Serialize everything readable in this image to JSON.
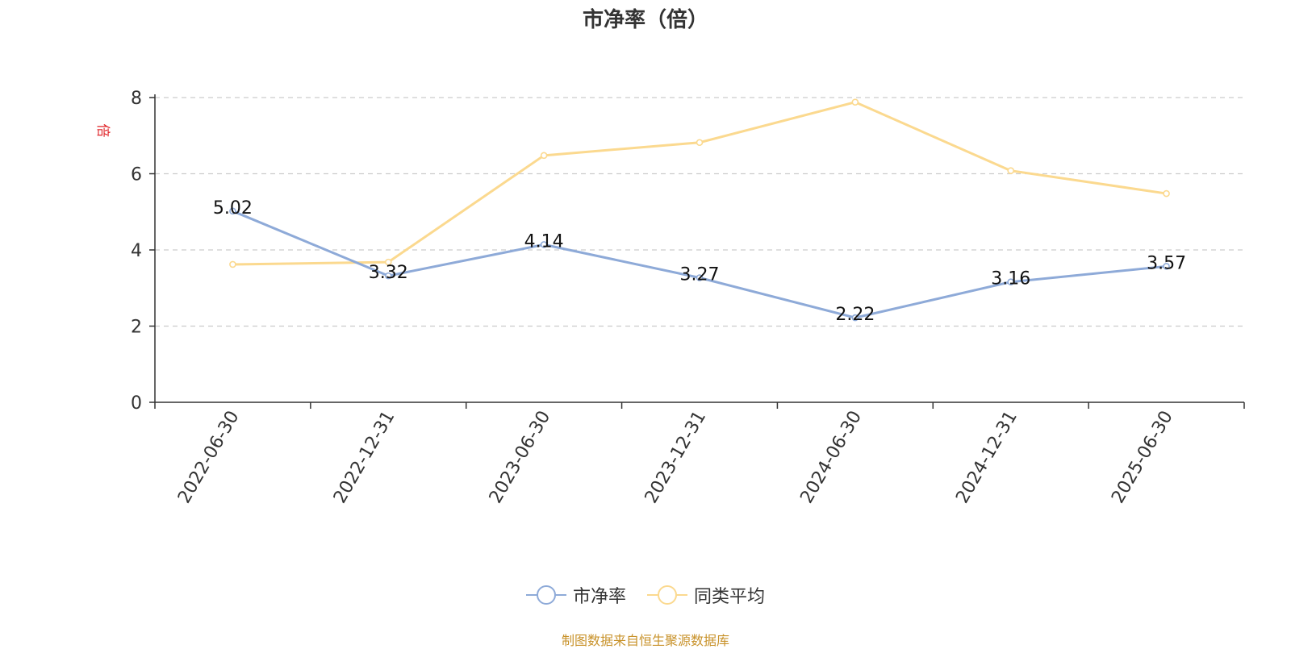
{
  "chart_data": {
    "type": "line",
    "title": "市净率（倍）",
    "ylabel": "倍",
    "ylim": [
      0,
      8
    ],
    "yticks": [
      "0",
      "2",
      "4",
      "6",
      "8"
    ],
    "categories": [
      "2022-06-30",
      "2022-12-31",
      "2023-06-30",
      "2023-12-31",
      "2024-06-30",
      "2024-12-31",
      "2025-06-30"
    ],
    "grid": true,
    "legend_position": "bottom",
    "series": [
      {
        "name": "市净率",
        "color": "#8eaad8",
        "values": [
          5.02,
          3.32,
          4.14,
          3.27,
          2.22,
          3.16,
          3.57
        ],
        "labels": [
          "5.02",
          "3.32",
          "4.14",
          "3.27",
          "2.22",
          "3.16",
          "3.57"
        ]
      },
      {
        "name": "同类平均",
        "color": "#fbd98f",
        "values": [
          3.62,
          3.68,
          6.48,
          6.82,
          7.88,
          6.08,
          5.48
        ]
      }
    ]
  },
  "source": "制图数据来自恒生聚源数据库"
}
